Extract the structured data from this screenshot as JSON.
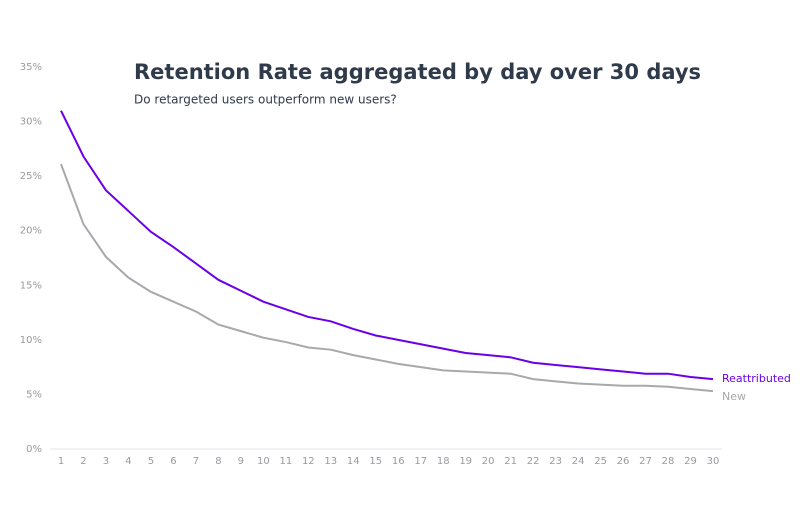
{
  "chart_data": {
    "type": "line",
    "title": "Retention Rate aggregated by day over 30 days",
    "subtitle": "Do retargeted users outperform new users?",
    "x": [
      1,
      2,
      3,
      4,
      5,
      6,
      7,
      8,
      9,
      10,
      11,
      12,
      13,
      14,
      15,
      16,
      17,
      18,
      19,
      20,
      21,
      22,
      23,
      24,
      25,
      26,
      27,
      28,
      29,
      30
    ],
    "xlim": [
      1,
      30
    ],
    "xticks": [
      1,
      2,
      3,
      4,
      5,
      6,
      7,
      8,
      9,
      10,
      11,
      12,
      13,
      14,
      15,
      16,
      17,
      18,
      19,
      20,
      21,
      22,
      23,
      24,
      25,
      26,
      27,
      28,
      29,
      30
    ],
    "ylim": [
      0,
      35
    ],
    "yticks": [
      {
        "value": 0,
        "label": "0%"
      },
      {
        "value": 5,
        "label": "5%"
      },
      {
        "value": 10,
        "label": "10%"
      },
      {
        "value": 15,
        "label": "15%"
      },
      {
        "value": 20,
        "label": "20%"
      },
      {
        "value": 25,
        "label": "25%"
      },
      {
        "value": 30,
        "label": "30%"
      },
      {
        "value": 35,
        "label": "35%"
      }
    ],
    "series": [
      {
        "name": "Reattributed",
        "color": "#6a00e8",
        "values": [
          31,
          26.8,
          23.7,
          21.8,
          19.9,
          18.5,
          17,
          15.5,
          14.5,
          13.5,
          12.8,
          12.1,
          11.7,
          11,
          10.4,
          10,
          9.6,
          9.2,
          8.8,
          8.6,
          8.4,
          7.9,
          7.7,
          7.5,
          7.3,
          7.1,
          6.9,
          6.9,
          6.6,
          6.4
        ]
      },
      {
        "name": "New",
        "color": "#a8a8ad",
        "values": [
          26.1,
          20.6,
          17.6,
          15.7,
          14.4,
          13.5,
          12.6,
          11.4,
          10.8,
          10.2,
          9.8,
          9.3,
          9.1,
          8.6,
          8.2,
          7.8,
          7.5,
          7.2,
          7.1,
          7.0,
          6.9,
          6.4,
          6.2,
          6.0,
          5.9,
          5.8,
          5.8,
          5.7,
          5.5,
          5.3
        ]
      }
    ]
  }
}
